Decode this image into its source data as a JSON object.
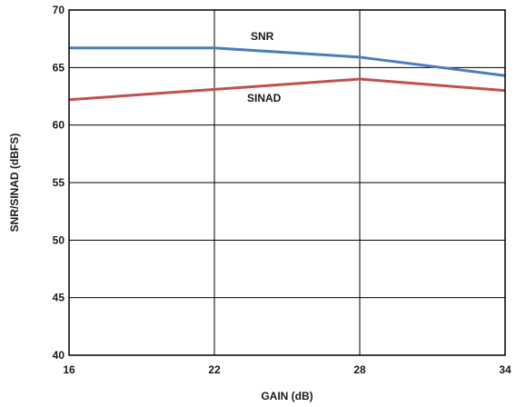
{
  "chart_data": {
    "type": "line",
    "xlabel": "GAIN (dB)",
    "ylabel": "SNR/SINAD (dBFS)",
    "x": [
      16,
      22,
      28,
      34
    ],
    "xlim": [
      16,
      34
    ],
    "ylim": [
      40,
      70
    ],
    "xticks": [
      "16",
      "22",
      "28",
      "34"
    ],
    "yticks": [
      "40",
      "45",
      "50",
      "55",
      "60",
      "65",
      "70"
    ],
    "grid": true,
    "series": [
      {
        "name": "SNR",
        "values": [
          66.7,
          66.7,
          65.9,
          64.3
        ],
        "color": "#4a7ebb"
      },
      {
        "name": "SINAD",
        "values": [
          62.2,
          63.1,
          64.0,
          63.0
        ],
        "color": "#c0504d"
      }
    ]
  }
}
